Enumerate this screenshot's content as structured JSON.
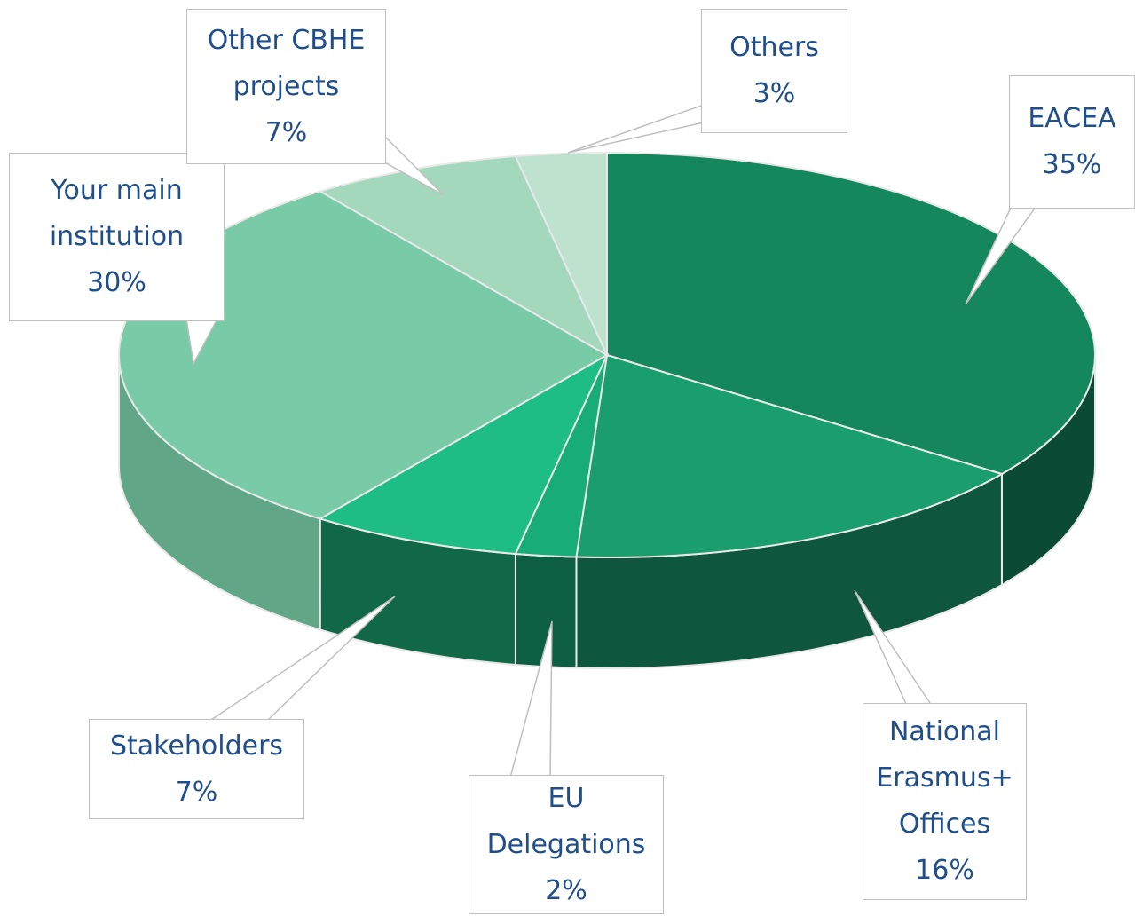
{
  "chart_data": {
    "type": "pie",
    "categories": [
      "EACEA",
      "National Erasmus+ Offices",
      "EU Delegations",
      "Stakeholders",
      "Your main institution",
      "Other CBHE projects",
      "Others"
    ],
    "values": [
      35,
      16,
      2,
      7,
      30,
      7,
      3
    ],
    "value_labels": [
      "35%",
      "16%",
      "2%",
      "7%",
      "30%",
      "7%",
      "3%"
    ],
    "colors": [
      "#14875f",
      "#1a9e70",
      "#18ac79",
      "#1ebd85",
      "#78cba6",
      "#a3d8bd",
      "#bde3cf"
    ]
  }
}
